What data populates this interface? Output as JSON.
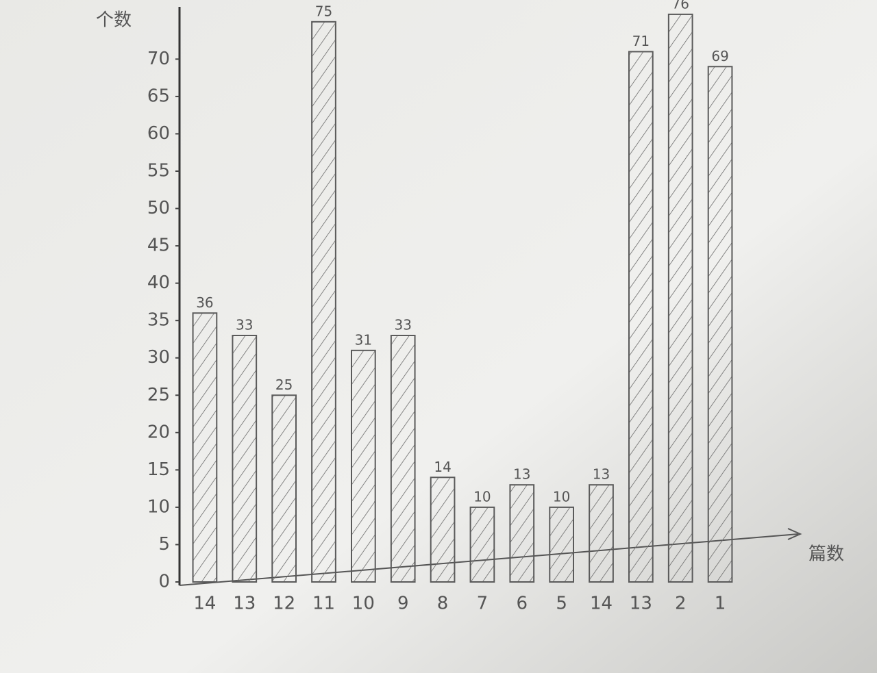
{
  "chart_data": {
    "type": "bar",
    "y_label": "个数",
    "x_label": "篇数",
    "categories": [
      "14",
      "13",
      "12",
      "11",
      "10",
      "9",
      "8",
      "7",
      "6",
      "5",
      "14",
      "13",
      "2",
      "1"
    ],
    "values": [
      36,
      33,
      25,
      75,
      31,
      33,
      14,
      10,
      13,
      10,
      13,
      71,
      76,
      69
    ],
    "color": "#5a5a5a",
    "ylim": [
      0,
      77
    ],
    "yticks": [
      0,
      5,
      10,
      15,
      20,
      25,
      30,
      35,
      40,
      45,
      50,
      55,
      60,
      65,
      70
    ]
  }
}
